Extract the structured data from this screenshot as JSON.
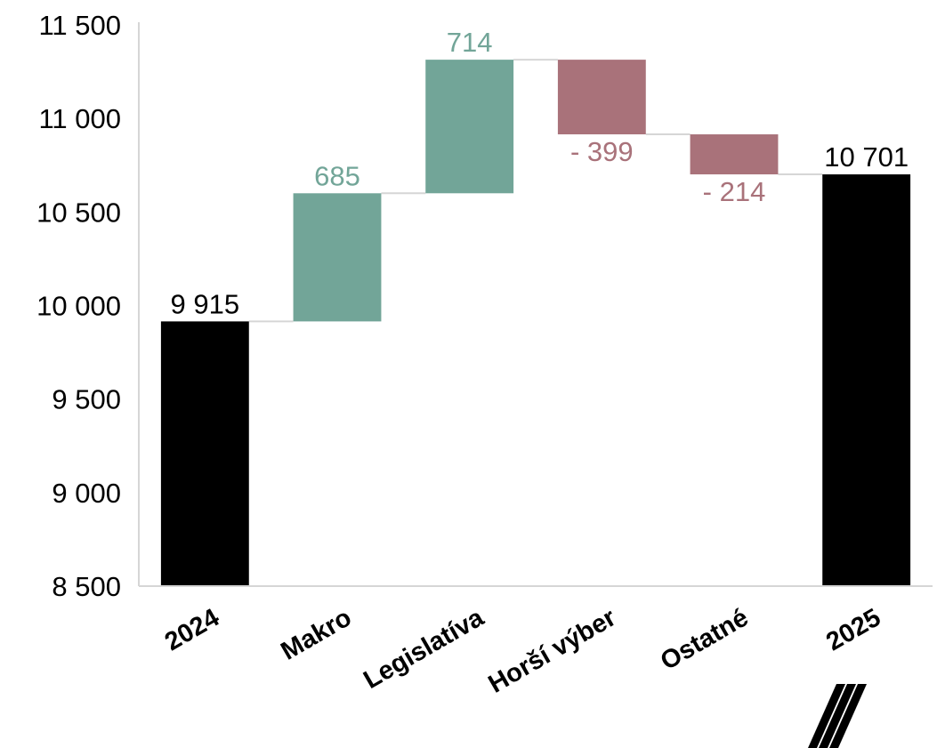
{
  "chart_data": {
    "type": "bar",
    "subtype": "waterfall",
    "title": "",
    "xlabel": "",
    "ylabel": "",
    "ylim": [
      8500,
      11500
    ],
    "yticks": [
      8500,
      9000,
      9500,
      10000,
      10500,
      11000,
      11500
    ],
    "ytick_labels": [
      "8 500",
      "9 000",
      "9 500",
      "10 000",
      "10 500",
      "11 000",
      "11 500"
    ],
    "grid": false,
    "legend": "none",
    "categories": [
      "2024",
      "Makro",
      "Legislatíva",
      "Horší výber",
      "Ostatné",
      "2025"
    ],
    "bar_kind": [
      "total",
      "increase",
      "increase",
      "decrease",
      "decrease",
      "total"
    ],
    "values": [
      9915,
      685,
      714,
      -399,
      -214,
      10701
    ],
    "data_labels": [
      "9 915",
      "685",
      "714",
      "- 399",
      "- 214",
      "10 701"
    ],
    "colors": {
      "total": "#000000",
      "increase": "#72a598",
      "decrease": "#a9727a",
      "connector": "#d6d6d6",
      "axis": "#d6d6d6"
    }
  },
  "logo": {
    "name": "logo-stripes-icon",
    "color": "#000000"
  }
}
